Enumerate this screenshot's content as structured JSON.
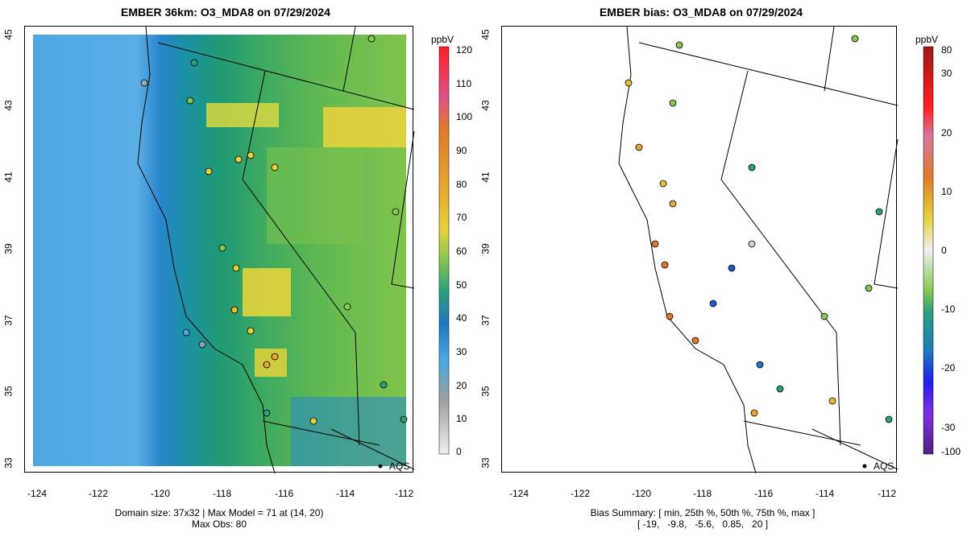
{
  "left_panel": {
    "title": "EMBER 36km: O3_MDA8 on 07/29/2024",
    "x_ticks": [
      "-124",
      "-122",
      "-120",
      "-118",
      "-116",
      "-114",
      "-112"
    ],
    "y_ticks": [
      "45",
      "43",
      "41",
      "39",
      "37",
      "35",
      "33"
    ],
    "caption_line1": "Domain size: 37x32 | Max Model = 71 at (14, 20)",
    "caption_line2": "Max Obs: 80",
    "colorbar_unit": "ppbV",
    "colorbar_ticks": [
      "120",
      "110",
      "100",
      "90",
      "80",
      "70",
      "60",
      "50",
      "40",
      "30",
      "20",
      "10",
      "0"
    ],
    "marker_label": "AQS"
  },
  "right_panel": {
    "title": "EMBER bias: O3_MDA8 on 07/29/2024",
    "x_ticks": [
      "-124",
      "-122",
      "-120",
      "-118",
      "-116",
      "-114",
      "-112"
    ],
    "y_ticks": [
      "45",
      "43",
      "41",
      "39",
      "37",
      "35",
      "33"
    ],
    "caption_line1": "Bias Summary: [ min, 25th %, 50th %, 75th %, max ]",
    "caption_line2": "[ -19,   -9.8,   -5.6,   0.85,   20 ]",
    "colorbar_unit": "ppbV",
    "colorbar_ticks": [
      "80",
      "30",
      "20",
      "10",
      "0",
      "-10",
      "-20",
      "-30",
      "-100"
    ],
    "marker_label": "AQS"
  },
  "colors": {
    "ocean_blue": "#4aa8e4",
    "coast_blue": "#1e78c0",
    "teal": "#14967a",
    "green": "#3eb070",
    "lime": "#86c850",
    "yellow": "#e8d63a"
  }
}
